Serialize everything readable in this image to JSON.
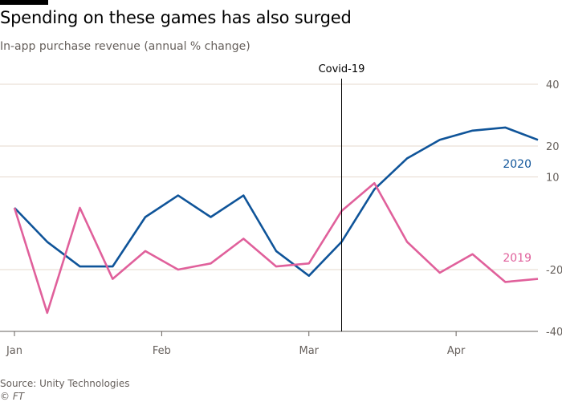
{
  "header": {
    "title": "Spending on these games has also surged",
    "subtitle": "In-app purchase revenue (annual % change)"
  },
  "footer": {
    "source": "Source: Unity Technologies",
    "credit": "© FT"
  },
  "colors": {
    "series_2020": "#0f5499",
    "series_2019": "#e0609b",
    "grid": "#e6d9ce",
    "axis": "#66605c",
    "annotation": "#000000"
  },
  "chart_data": {
    "type": "line",
    "title": "Spending on these games has also surged",
    "subtitle": "In-app purchase revenue (annual % change)",
    "xlabel": "",
    "ylabel": "",
    "ylim": [
      -40,
      40
    ],
    "yticks": [
      40,
      20,
      10,
      -20,
      -40
    ],
    "xlim": [
      1,
      17
    ],
    "x_tick_labels": [
      {
        "label": "Jan",
        "x": 1
      },
      {
        "label": "Feb",
        "x": 5.5
      },
      {
        "label": "Mar",
        "x": 10
      },
      {
        "label": "Apr",
        "x": 14.5
      }
    ],
    "grid": true,
    "annotations": [
      {
        "label": "Covid-19",
        "x": 11,
        "type": "vertical-line"
      }
    ],
    "series": [
      {
        "name": "2020",
        "x": [
          1,
          2,
          3,
          4,
          5,
          6,
          7,
          8,
          9,
          10,
          11,
          12,
          13,
          14,
          15,
          16,
          17
        ],
        "values": [
          0,
          -11,
          -19,
          -19,
          -3,
          4,
          -3,
          4,
          -14,
          -22,
          -11,
          6,
          16,
          22,
          25,
          26,
          22
        ]
      },
      {
        "name": "2019",
        "x": [
          1,
          2,
          3,
          4,
          5,
          6,
          7,
          8,
          9,
          10,
          11,
          12,
          13,
          14,
          15,
          16,
          17
        ],
        "values": [
          0,
          -34,
          0,
          -23,
          -14,
          -20,
          -18,
          -10,
          -19,
          -18,
          -1,
          8,
          -11,
          -21,
          -15,
          -24,
          -23
        ]
      }
    ]
  }
}
